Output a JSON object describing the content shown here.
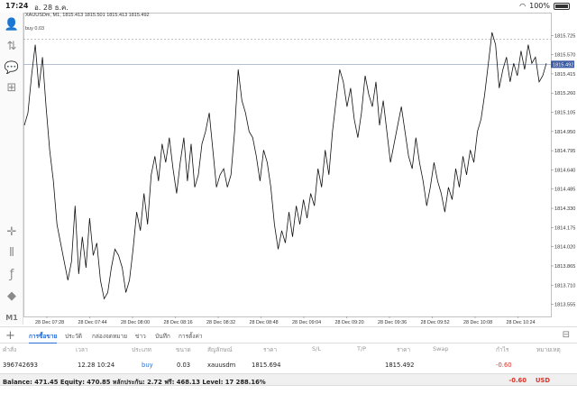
{
  "status": {
    "time": "17:24",
    "date": "อ. 28 ธ.ค.",
    "battery": "100%"
  },
  "toolbar": {
    "items": [
      {
        "name": "account-icon",
        "glyph": "👤"
      },
      {
        "name": "one-click-trade-icon",
        "glyph": "⇅"
      },
      {
        "name": "chat-icon",
        "glyph": "💬"
      },
      {
        "name": "new-order-icon",
        "glyph": "⊞"
      },
      {
        "name": "crosshair-icon",
        "glyph": "✛"
      },
      {
        "name": "chart-type-icon",
        "glyph": "⫴"
      },
      {
        "name": "indicators-icon",
        "glyph": "ƒ"
      },
      {
        "name": "objects-icon",
        "glyph": "◆"
      }
    ],
    "timeframe": "M1"
  },
  "chart": {
    "info": "XAUUSDm, M1, 1815.413 1815.501 1815.413 1815.492",
    "buy_label": "buy 0.03",
    "current_price": "1815.492",
    "colors": {
      "line": "#111111",
      "grid": "#c8c8c8",
      "price_tag": "#3b5ba5",
      "buy_line": "#9a9a9a"
    }
  },
  "chart_data": {
    "type": "line",
    "title": "",
    "xlabel": "",
    "ylabel": "",
    "ylim": [
      1813.45,
      1815.88
    ],
    "yticks": [
      1815.725,
      1815.57,
      1815.415,
      1815.26,
      1815.105,
      1814.95,
      1814.795,
      1814.64,
      1814.485,
      1814.33,
      1814.175,
      1814.02,
      1813.865,
      1813.71,
      1813.555
    ],
    "xticks": [
      "28 Dec 07:28",
      "28 Dec 07:44",
      "28 Dec 08:00",
      "28 Dec 08:16",
      "28 Dec 08:32",
      "28 Dec 08:48",
      "28 Dec 09:04",
      "28 Dec 09:20",
      "28 Dec 09:36",
      "28 Dec 09:52",
      "28 Dec 10:08",
      "28 Dec 10:24"
    ],
    "buy_price": 1815.694,
    "current_price": 1815.492,
    "series": [
      {
        "values": [
          1815.0,
          1815.1,
          1815.4,
          1815.65,
          1815.3,
          1815.55,
          1815.15,
          1814.8,
          1814.55,
          1814.2,
          1814.05,
          1813.9,
          1813.75,
          1813.9,
          1814.35,
          1813.8,
          1814.1,
          1813.85,
          1814.25,
          1813.95,
          1814.05,
          1813.75,
          1813.6,
          1813.65,
          1813.85,
          1814.0,
          1813.95,
          1813.85,
          1813.65,
          1813.75,
          1814.0,
          1814.3,
          1814.15,
          1814.45,
          1814.2,
          1814.6,
          1814.75,
          1814.55,
          1814.85,
          1814.7,
          1814.9,
          1814.65,
          1814.45,
          1814.7,
          1814.9,
          1814.55,
          1814.85,
          1814.5,
          1814.6,
          1814.85,
          1814.95,
          1815.1,
          1814.8,
          1814.5,
          1814.6,
          1814.65,
          1814.5,
          1814.6,
          1814.95,
          1815.45,
          1815.2,
          1815.1,
          1814.95,
          1814.9,
          1814.75,
          1814.55,
          1814.8,
          1814.7,
          1814.5,
          1814.2,
          1814.0,
          1814.15,
          1814.05,
          1814.3,
          1814.1,
          1814.35,
          1814.2,
          1814.4,
          1814.25,
          1814.45,
          1814.35,
          1814.65,
          1814.5,
          1814.8,
          1814.6,
          1814.95,
          1815.2,
          1815.45,
          1815.35,
          1815.15,
          1815.3,
          1815.05,
          1814.9,
          1815.1,
          1815.4,
          1815.25,
          1815.15,
          1815.35,
          1815.0,
          1815.2,
          1814.95,
          1814.7,
          1814.85,
          1815.0,
          1815.15,
          1814.95,
          1814.75,
          1814.65,
          1814.9,
          1814.7,
          1814.55,
          1814.35,
          1814.5,
          1814.7,
          1814.55,
          1814.45,
          1814.3,
          1814.5,
          1814.4,
          1814.65,
          1814.5,
          1814.75,
          1814.6,
          1814.8,
          1814.7,
          1814.95,
          1815.05,
          1815.25,
          1815.5,
          1815.75,
          1815.65,
          1815.3,
          1815.45,
          1815.55,
          1815.35,
          1815.5,
          1815.4,
          1815.6,
          1815.45,
          1815.65,
          1815.5,
          1815.55,
          1815.35,
          1815.4,
          1815.5
        ]
      }
    ]
  },
  "trade_tabs": [
    "การซื้อขาย",
    "ประวัติ",
    "กล่องจดหมาย",
    "ข่าว",
    "บันทึก",
    "การตั้งค่า"
  ],
  "columns": [
    "คำสั่ง",
    "เวลา",
    "ประเภท",
    "ขนาด",
    "สัญลักษณ์",
    "ราคา",
    "S/L",
    "T/P",
    "ราคา",
    "Swap",
    "กำไร",
    "หมายเหตุ"
  ],
  "position": {
    "order": "396742693",
    "time": "12.28 10:24",
    "type": "buy",
    "size": "0.03",
    "symbol": "xauusdm",
    "open_price": "1815.694",
    "sl": "",
    "tp": "",
    "price": "1815.492",
    "swap": "",
    "profit": "-0.60",
    "comment": ""
  },
  "balance": {
    "text": "Balance: 471.45 Equity: 470.85 หลักประกัน: 2.72 ฟรี: 468.13 Level: 17 288.16%",
    "total": "-0.60",
    "currency": "USD"
  }
}
